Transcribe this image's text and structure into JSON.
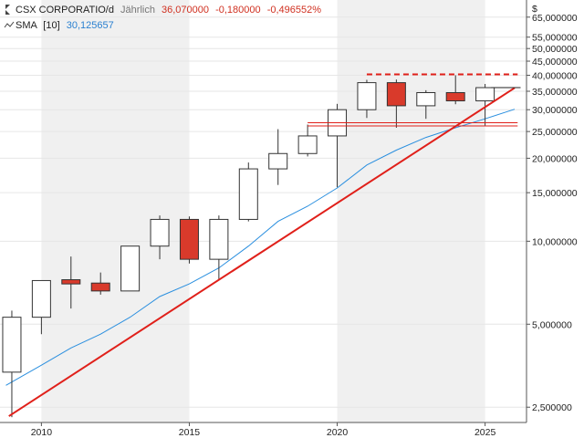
{
  "legend": {
    "symbol": "CSX CORPORATIO/d",
    "period": "Jährlich",
    "last": "36,070000",
    "change": "-0,180000",
    "change_pct": "-0,496552%",
    "sma_label": "SMA",
    "sma_param": "[10]",
    "sma_value": "30,125657"
  },
  "colors": {
    "up_candle": "#ffffff",
    "down_candle": "#d93a2b",
    "candle_border": "#333333",
    "sma": "#2a8fdf",
    "trend": "#e0201a",
    "band_light": "#f0f0f0",
    "legend_red": "#d03020",
    "legend_blue": "#2a80d0"
  },
  "chart_data": {
    "type": "candlestick",
    "y_scale": "log",
    "ylim": [
      2.2,
      75
    ],
    "xlim": [
      2008.6,
      2026.4
    ],
    "y_ticks": [
      {
        "v": 65,
        "label": "65,000000"
      },
      {
        "v": 55,
        "label": "55,000000"
      },
      {
        "v": 50,
        "label": "50,000000"
      },
      {
        "v": 45,
        "label": "45,000000"
      },
      {
        "v": 40,
        "label": "40,000000"
      },
      {
        "v": 35,
        "label": "35,000000"
      },
      {
        "v": 30,
        "label": "30,000000"
      },
      {
        "v": 25,
        "label": "25,000000"
      },
      {
        "v": 20,
        "label": "20,000000"
      },
      {
        "v": 15,
        "label": "15,000000"
      },
      {
        "v": 10,
        "label": "10,000000"
      },
      {
        "v": 5,
        "label": "5,000000"
      },
      {
        "v": 2.5,
        "label": "2,500000"
      }
    ],
    "currency_symbol": "$",
    "x_ticks": [
      {
        "v": 2010,
        "label": "2010"
      },
      {
        "v": 2015,
        "label": "2015"
      },
      {
        "v": 2020,
        "label": "2020"
      },
      {
        "v": 2025,
        "label": "2025"
      }
    ],
    "candles": [
      {
        "year": 2009,
        "open": 3.35,
        "high": 5.6,
        "low": 2.3,
        "close": 5.3
      },
      {
        "year": 2010,
        "open": 5.3,
        "high": 7.2,
        "low": 4.6,
        "close": 7.2
      },
      {
        "year": 2011,
        "open": 7.25,
        "high": 8.8,
        "low": 5.7,
        "close": 7.0
      },
      {
        "year": 2012,
        "open": 7.05,
        "high": 7.7,
        "low": 6.4,
        "close": 6.6
      },
      {
        "year": 2013,
        "open": 6.6,
        "high": 9.6,
        "low": 6.6,
        "close": 9.6
      },
      {
        "year": 2014,
        "open": 9.6,
        "high": 12.4,
        "low": 8.6,
        "close": 12.0
      },
      {
        "year": 2015,
        "open": 12.0,
        "high": 12.3,
        "low": 8.3,
        "close": 8.6
      },
      {
        "year": 2016,
        "open": 8.6,
        "high": 12.4,
        "low": 7.2,
        "close": 12.0
      },
      {
        "year": 2017,
        "open": 12.0,
        "high": 19.3,
        "low": 11.8,
        "close": 18.3
      },
      {
        "year": 2018,
        "open": 18.3,
        "high": 25.5,
        "low": 16.0,
        "close": 20.8
      },
      {
        "year": 2019,
        "open": 20.8,
        "high": 26.5,
        "low": 20.3,
        "close": 24.1
      },
      {
        "year": 2020,
        "open": 24.1,
        "high": 31.5,
        "low": 15.7,
        "close": 30.0
      },
      {
        "year": 2021,
        "open": 30.0,
        "high": 38.5,
        "low": 28.0,
        "close": 37.6
      },
      {
        "year": 2022,
        "open": 37.6,
        "high": 38.6,
        "low": 25.8,
        "close": 31.0
      },
      {
        "year": 2023,
        "open": 31.0,
        "high": 35.3,
        "low": 27.8,
        "close": 34.6
      },
      {
        "year": 2024,
        "open": 34.6,
        "high": 40.0,
        "low": 31.4,
        "close": 32.3
      },
      {
        "year": 2025,
        "open": 32.3,
        "high": 37.2,
        "low": 26.3,
        "close": 36.07
      }
    ],
    "sma": [
      {
        "x": 2008.8,
        "y": 3.0
      },
      {
        "x": 2010.0,
        "y": 3.55
      },
      {
        "x": 2011.0,
        "y": 4.1
      },
      {
        "x": 2012.0,
        "y": 4.6
      },
      {
        "x": 2013.0,
        "y": 5.3
      },
      {
        "x": 2014.0,
        "y": 6.3
      },
      {
        "x": 2015.0,
        "y": 7.0
      },
      {
        "x": 2016.0,
        "y": 8.0
      },
      {
        "x": 2017.0,
        "y": 9.6
      },
      {
        "x": 2018.0,
        "y": 11.8
      },
      {
        "x": 2019.0,
        "y": 13.4
      },
      {
        "x": 2020.0,
        "y": 15.6
      },
      {
        "x": 2021.0,
        "y": 18.9
      },
      {
        "x": 2022.0,
        "y": 21.4
      },
      {
        "x": 2023.0,
        "y": 23.8
      },
      {
        "x": 2024.0,
        "y": 25.8
      },
      {
        "x": 2025.0,
        "y": 27.8
      },
      {
        "x": 2026.0,
        "y": 30.125657
      }
    ],
    "trendline": [
      {
        "x": 2008.9,
        "y": 2.32
      },
      {
        "x": 2026.0,
        "y": 36.0
      }
    ],
    "resistance": {
      "x1": 2021.0,
      "x2": 2026.1,
      "y": 40.3
    },
    "support_lines": [
      {
        "x1": 2019.0,
        "x2": 2026.1,
        "y": 26.9
      },
      {
        "x1": 2019.0,
        "x2": 2026.1,
        "y": 26.2
      }
    ],
    "last_price_line": {
      "x1": 2025.2,
      "x2": 2026.2,
      "y": 36.07
    },
    "bands": [
      [
        2010.0,
        2015.0
      ],
      [
        2020.0,
        2025.0
      ]
    ]
  }
}
